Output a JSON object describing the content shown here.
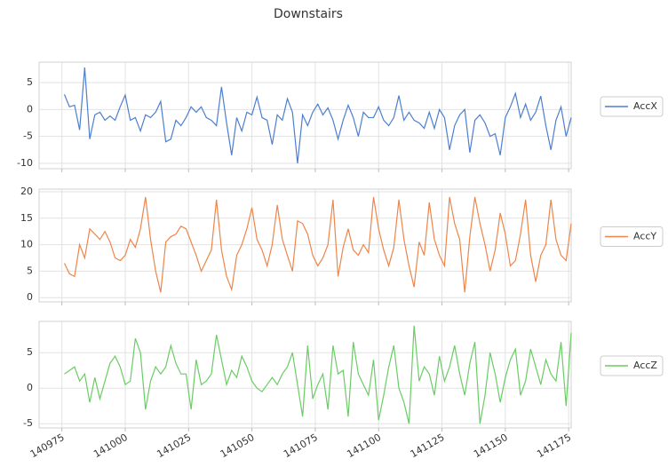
{
  "title": "Downstairs",
  "chart_data": [
    {
      "type": "line",
      "x": [
        140976,
        140978,
        140980,
        140982,
        140984,
        140986,
        140988,
        140990,
        140992,
        140994,
        140996,
        140998,
        141000,
        141002,
        141004,
        141006,
        141008,
        141010,
        141012,
        141014,
        141016,
        141018,
        141020,
        141022,
        141024,
        141026,
        141028,
        141030,
        141032,
        141034,
        141036,
        141038,
        141040,
        141042,
        141044,
        141046,
        141048,
        141050,
        141052,
        141054,
        141056,
        141058,
        141060,
        141062,
        141064,
        141066,
        141068,
        141070,
        141072,
        141074,
        141076,
        141078,
        141080,
        141082,
        141084,
        141086,
        141088,
        141090,
        141092,
        141094,
        141096,
        141098,
        141100,
        141102,
        141104,
        141106,
        141108,
        141110,
        141112,
        141114,
        141116,
        141118,
        141120,
        141122,
        141124,
        141126,
        141128,
        141130,
        141132,
        141134,
        141136,
        141138,
        141140,
        141142,
        141144,
        141146,
        141148,
        141150,
        141152,
        141154,
        141156,
        141158,
        141160,
        141162,
        141164,
        141166,
        141168,
        141170,
        141172,
        141174,
        141176
      ],
      "series": [
        {
          "name": "AccX",
          "color": "#4c7fd0",
          "values": [
            2.8,
            0.5,
            0.8,
            -3.8,
            7.8,
            -5.5,
            -1,
            -0.5,
            -2,
            -1.2,
            -2,
            0.5,
            2.7,
            -2,
            -1.5,
            -4,
            -1,
            -1.5,
            -0.5,
            1.5,
            -6,
            -5.5,
            -2,
            -3,
            -1.5,
            0.5,
            -0.5,
            0.5,
            -1.5,
            -2,
            -3,
            4.2,
            -2.5,
            -8.5,
            -1.5,
            -4,
            -0.5,
            -1,
            2.3,
            -1.5,
            -2,
            -6.5,
            -1,
            -2,
            2,
            -0.5,
            -10,
            -1,
            -3,
            -0.5,
            1,
            -1,
            0.3,
            -2,
            -5.5,
            -2,
            0.8,
            -1.5,
            -5,
            -0.5,
            -1.5,
            -1.5,
            0.5,
            -2,
            -3,
            -1.5,
            2.6,
            -2,
            -0.5,
            -2,
            -2.5,
            -3.5,
            -0.5,
            -3.5,
            0,
            -1.5,
            -7.5,
            -3,
            -1,
            0,
            -8,
            -2,
            -1,
            -2.5,
            -5,
            -4.5,
            -8.5,
            -1.5,
            0.5,
            3,
            -1.5,
            1,
            -2,
            -0.5,
            2.5,
            -3,
            -7.5,
            -2,
            0.5,
            -5,
            -1.5
          ]
        }
      ],
      "xlim": [
        140966,
        141176
      ],
      "xticks": [
        140975,
        141000,
        141025,
        141050,
        141075,
        141100,
        141125,
        141150,
        141175
      ],
      "ylim": [
        -11,
        8.8
      ],
      "yticks": [
        -10,
        -5,
        0,
        5
      ],
      "grid": true
    },
    {
      "type": "line",
      "x": [
        140976,
        140978,
        140980,
        140982,
        140984,
        140986,
        140988,
        140990,
        140992,
        140994,
        140996,
        140998,
        141000,
        141002,
        141004,
        141006,
        141008,
        141010,
        141012,
        141014,
        141016,
        141018,
        141020,
        141022,
        141024,
        141026,
        141028,
        141030,
        141032,
        141034,
        141036,
        141038,
        141040,
        141042,
        141044,
        141046,
        141048,
        141050,
        141052,
        141054,
        141056,
        141058,
        141060,
        141062,
        141064,
        141066,
        141068,
        141070,
        141072,
        141074,
        141076,
        141078,
        141080,
        141082,
        141084,
        141086,
        141088,
        141090,
        141092,
        141094,
        141096,
        141098,
        141100,
        141102,
        141104,
        141106,
        141108,
        141110,
        141112,
        141114,
        141116,
        141118,
        141120,
        141122,
        141124,
        141126,
        141128,
        141130,
        141132,
        141134,
        141136,
        141138,
        141140,
        141142,
        141144,
        141146,
        141148,
        141150,
        141152,
        141154,
        141156,
        141158,
        141160,
        141162,
        141164,
        141166,
        141168,
        141170,
        141172,
        141174,
        141176
      ],
      "series": [
        {
          "name": "AccY",
          "color": "#ee854a",
          "values": [
            6.5,
            4.5,
            4,
            10,
            7.5,
            13,
            12,
            11,
            12.5,
            10.5,
            7.5,
            7,
            8,
            11,
            9.5,
            13,
            19,
            11,
            5,
            1,
            10.5,
            11.5,
            12,
            13.5,
            13,
            10.5,
            8,
            5,
            7,
            9,
            18.5,
            9,
            4,
            1.5,
            8,
            10,
            13,
            17,
            11,
            9,
            6,
            10,
            17.5,
            11,
            8,
            5,
            14.5,
            14,
            12,
            8,
            6,
            7.5,
            10,
            18.5,
            4,
            9.5,
            13,
            9,
            8,
            10,
            8.5,
            19,
            13,
            9,
            6,
            9.5,
            18.5,
            11,
            6,
            2,
            10.5,
            8,
            18,
            11,
            8,
            6,
            19,
            14,
            11,
            1,
            11.5,
            19,
            14,
            10,
            5,
            9,
            16,
            12,
            6,
            7,
            12,
            18.5,
            8,
            3,
            8,
            10,
            18.5,
            11,
            8,
            7,
            14
          ]
        }
      ],
      "xlim": [
        140966,
        141176
      ],
      "xticks": [
        140975,
        141000,
        141025,
        141050,
        141075,
        141100,
        141125,
        141150,
        141175
      ],
      "ylim": [
        -0.8,
        20.5
      ],
      "yticks": [
        0,
        5,
        10,
        15,
        20
      ],
      "grid": true
    },
    {
      "type": "line",
      "x": [
        140976,
        140978,
        140980,
        140982,
        140984,
        140986,
        140988,
        140990,
        140992,
        140994,
        140996,
        140998,
        141000,
        141002,
        141004,
        141006,
        141008,
        141010,
        141012,
        141014,
        141016,
        141018,
        141020,
        141022,
        141024,
        141026,
        141028,
        141030,
        141032,
        141034,
        141036,
        141038,
        141040,
        141042,
        141044,
        141046,
        141048,
        141050,
        141052,
        141054,
        141056,
        141058,
        141060,
        141062,
        141064,
        141066,
        141068,
        141070,
        141072,
        141074,
        141076,
        141078,
        141080,
        141082,
        141084,
        141086,
        141088,
        141090,
        141092,
        141094,
        141096,
        141098,
        141100,
        141102,
        141104,
        141106,
        141108,
        141110,
        141112,
        141114,
        141116,
        141118,
        141120,
        141122,
        141124,
        141126,
        141128,
        141130,
        141132,
        141134,
        141136,
        141138,
        141140,
        141142,
        141144,
        141146,
        141148,
        141150,
        141152,
        141154,
        141156,
        141158,
        141160,
        141162,
        141164,
        141166,
        141168,
        141170,
        141172,
        141174,
        141176
      ],
      "series": [
        {
          "name": "AccZ",
          "color": "#6acc64",
          "values": [
            2,
            2.5,
            3,
            1,
            2,
            -2,
            1.5,
            -1.5,
            1,
            3.5,
            4.5,
            3,
            0.5,
            1,
            7,
            5,
            -3,
            1,
            3,
            2,
            3,
            6,
            3.5,
            2,
            2,
            -3,
            4,
            0.5,
            1,
            2,
            7.5,
            4,
            0.5,
            2.5,
            1.5,
            4.5,
            3,
            1,
            0,
            -0.5,
            0.5,
            1.5,
            0.5,
            2,
            3,
            5,
            0.5,
            -4,
            6,
            -1.5,
            0.5,
            2,
            -3,
            6,
            2,
            2.5,
            -4,
            6.5,
            2,
            0.5,
            -1,
            4,
            -4.5,
            -1,
            3,
            6,
            0,
            -2,
            -5,
            8.8,
            1,
            3,
            2,
            -1,
            4.5,
            1,
            3,
            6,
            2,
            -1,
            3.5,
            6.5,
            -5,
            -1,
            5,
            2,
            -2,
            1.5,
            4,
            5.5,
            -1,
            1,
            5.5,
            3,
            0.5,
            4,
            2,
            1,
            6.5,
            -2.5,
            7.8
          ]
        }
      ],
      "xlim": [
        140966,
        141176
      ],
      "xticks": [
        140975,
        141000,
        141025,
        141050,
        141075,
        141100,
        141125,
        141150,
        141175
      ],
      "ylim": [
        -5.6,
        9.4
      ],
      "yticks": [
        -5,
        0,
        5
      ],
      "grid": true
    }
  ]
}
